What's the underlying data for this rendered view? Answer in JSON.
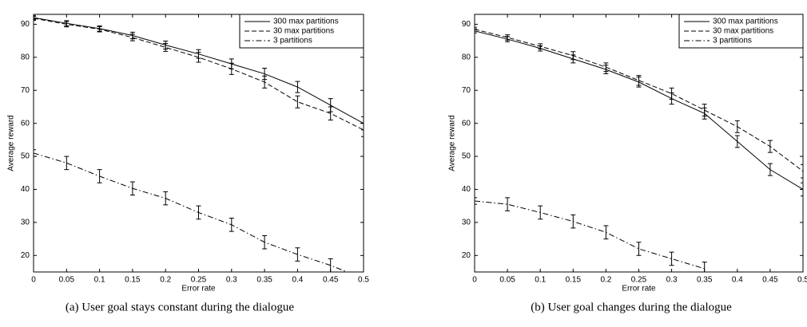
{
  "chart_data": [
    {
      "type": "line",
      "caption": "(a) User goal stays constant during the dialogue",
      "xlabel": "Error rate",
      "ylabel": "Average reward",
      "x": [
        0,
        0.05,
        0.1,
        0.15,
        0.2,
        0.25,
        0.3,
        0.35,
        0.4,
        0.45,
        0.5
      ],
      "xlim": [
        0,
        0.5
      ],
      "ylim": [
        15,
        93
      ],
      "xticks": [
        0,
        0.05,
        0.1,
        0.15,
        0.2,
        0.25,
        0.3,
        0.35,
        0.4,
        0.45,
        0.5
      ],
      "yticks": [
        20,
        30,
        40,
        50,
        60,
        70,
        80,
        90
      ],
      "legend": "upper right",
      "series": [
        {
          "name": "300 max partitions",
          "color": "#000000",
          "dash": "solid",
          "values": [
            92,
            90.3,
            88.7,
            86.6,
            83.7,
            81,
            78,
            75,
            71,
            65.5,
            60
          ],
          "errors": [
            0.6,
            0.8,
            0.8,
            1,
            1.2,
            1.3,
            1.5,
            1.7,
            1.7,
            2,
            2
          ]
        },
        {
          "name": "30 max partitions",
          "color": "#000000",
          "dash": "dashed",
          "values": [
            91.8,
            90,
            88.5,
            86,
            83,
            80,
            76.5,
            72.5,
            66.5,
            63,
            58
          ],
          "errors": [
            0.6,
            0.8,
            0.8,
            1,
            1.2,
            1.5,
            1.7,
            1.8,
            1.8,
            2,
            2
          ]
        },
        {
          "name": "3 partitions",
          "color": "#000000",
          "dash": "dashdot",
          "values": [
            51,
            48,
            44,
            40.3,
            37.3,
            33,
            29.3,
            24,
            20.3,
            17,
            13
          ],
          "errors": [
            1,
            2,
            2,
            2,
            2,
            2,
            2,
            2,
            2,
            2,
            2
          ]
        }
      ]
    },
    {
      "type": "line",
      "caption": "(b) User goal changes during the dialogue",
      "xlabel": "Error rate",
      "ylabel": "Average reward",
      "x": [
        0,
        0.05,
        0.1,
        0.15,
        0.2,
        0.25,
        0.3,
        0.35,
        0.4,
        0.45,
        0.5
      ],
      "xlim": [
        0,
        0.5
      ],
      "ylim": [
        15,
        93
      ],
      "xticks": [
        0,
        0.05,
        0.1,
        0.15,
        0.2,
        0.25,
        0.3,
        0.35,
        0.4,
        0.45,
        0.5
      ],
      "yticks": [
        20,
        30,
        40,
        50,
        60,
        70,
        80,
        90
      ],
      "legend": "upper right",
      "series": [
        {
          "name": "300 max partitions",
          "color": "#000000",
          "dash": "solid",
          "values": [
            88,
            85.5,
            82.7,
            79.5,
            76.3,
            72.5,
            67.5,
            63,
            54.5,
            46,
            40
          ],
          "errors": [
            0.6,
            0.8,
            0.8,
            1.2,
            1.3,
            1.5,
            1.7,
            1.7,
            1.8,
            1.8,
            2
          ]
        },
        {
          "name": "30 max partitions",
          "color": "#000000",
          "dash": "dashed",
          "values": [
            88.5,
            86,
            83.3,
            80.5,
            77,
            73,
            69,
            64,
            59,
            53,
            45.5
          ],
          "errors": [
            0.6,
            0.8,
            0.8,
            1.2,
            1.3,
            1.5,
            1.7,
            1.8,
            1.8,
            1.8,
            2
          ]
        },
        {
          "name": "3 partitions",
          "color": "#000000",
          "dash": "dashdot",
          "values": [
            36.5,
            35.5,
            33,
            30.3,
            27,
            22,
            19,
            16,
            null,
            null,
            null
          ],
          "errors": [
            1,
            2,
            2,
            2,
            2,
            2,
            2,
            2,
            null,
            null,
            null
          ]
        }
      ]
    }
  ]
}
